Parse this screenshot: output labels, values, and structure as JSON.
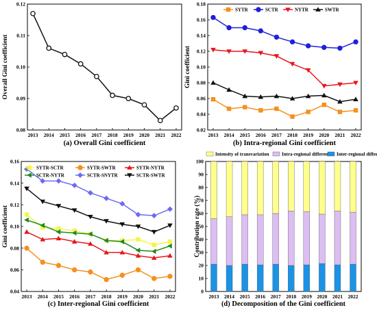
{
  "colors": {
    "axis": "#000000",
    "SYTR": "#f5901e",
    "SCTR": "#1f1fdc",
    "NYTR": "#e8161a",
    "SWTR": "#111111",
    "SYTR-SCTR": "#f5f54a",
    "SYTR-SWTR": "#f5901e",
    "SYTR-NYTR": "#e8161a",
    "SCTR-NYTR": "#1f8a1f",
    "SCTR-SNYTR": "#6b6bf0",
    "SCTR-SWTR": "#111111",
    "transvariation": "#ffff8c",
    "intra": "#dcbef2",
    "inter": "#1a93e6"
  },
  "chart_data": [
    {
      "id": "a",
      "type": "line",
      "caption": "(a) Overall Gini coefficient",
      "ylabel": "Overall Gini coefficient",
      "xlabel": "",
      "x": [
        "2013",
        "2014",
        "2015",
        "2016",
        "2017",
        "2018",
        "2019",
        "2020",
        "2021",
        "2022"
      ],
      "ylim": [
        0.08,
        0.12
      ],
      "yticks": [
        "0.08",
        "0.09",
        "0.10",
        "0.11",
        "0.12"
      ],
      "series": [
        {
          "values": [
            0.117,
            0.106,
            0.104,
            0.101,
            0.097,
            0.091,
            0.09,
            0.088,
            0.083,
            0.087
          ],
          "color": "#111111",
          "marker": "circle-open"
        }
      ]
    },
    {
      "id": "b",
      "type": "line",
      "caption": "(b) Intra-regional Gini coefficient",
      "ylabel": "Gini coefficient",
      "xlabel": "",
      "x": [
        "2013",
        "2014",
        "2015",
        "2016",
        "2017",
        "2018",
        "2019",
        "2020",
        "2021",
        "2022"
      ],
      "ylim": [
        0.02,
        0.18
      ],
      "yticks": [
        "0.02",
        "0.04",
        "0.06",
        "0.08",
        "0.10",
        "0.12",
        "0.14",
        "0.16",
        "0.18"
      ],
      "legend_position": "top",
      "series": [
        {
          "name": "SYTR",
          "values": [
            0.059,
            0.047,
            0.049,
            0.045,
            0.047,
            0.037,
            0.043,
            0.052,
            0.043,
            0.045
          ],
          "color": "#f5901e",
          "marker": "square"
        },
        {
          "name": "SCTR",
          "values": [
            0.163,
            0.15,
            0.15,
            0.146,
            0.138,
            0.132,
            0.127,
            0.125,
            0.124,
            0.132
          ],
          "color": "#1f1fdc",
          "marker": "circle"
        },
        {
          "name": "NYTR",
          "values": [
            0.122,
            0.12,
            0.12,
            0.118,
            0.114,
            0.104,
            0.096,
            0.076,
            0.078,
            0.08
          ],
          "color": "#e8161a",
          "marker": "triangle-down"
        },
        {
          "name": "SWTR",
          "values": [
            0.08,
            0.071,
            0.063,
            0.062,
            0.063,
            0.06,
            0.063,
            0.064,
            0.056,
            0.059
          ],
          "color": "#111111",
          "marker": "triangle-up"
        }
      ]
    },
    {
      "id": "c",
      "type": "line",
      "caption": "(c) Inter-regional Gini coefficient",
      "ylabel": "Gini coefficient",
      "xlabel": "",
      "x": [
        "2013",
        "2014",
        "2015",
        "2016",
        "2017",
        "2018",
        "2019",
        "2020",
        "2021",
        "2022"
      ],
      "ylim": [
        0.04,
        0.16
      ],
      "yticks": [
        "0.04",
        "0.06",
        "0.08",
        "0.10",
        "0.12",
        "0.14",
        "0.16"
      ],
      "legend_position": "top",
      "series": [
        {
          "name": "SYTR-SCTR",
          "values": [
            0.111,
            0.099,
            0.098,
            0.096,
            0.093,
            0.087,
            0.087,
            0.088,
            0.083,
            0.086
          ],
          "color": "#f5f54a",
          "marker": "square"
        },
        {
          "name": "SYTR-SWTR",
          "values": [
            0.08,
            0.067,
            0.064,
            0.06,
            0.058,
            0.051,
            0.055,
            0.06,
            0.052,
            0.054
          ],
          "color": "#f5901e",
          "marker": "circle"
        },
        {
          "name": "SYTR-NYTR",
          "values": [
            0.095,
            0.088,
            0.089,
            0.086,
            0.084,
            0.076,
            0.076,
            0.073,
            0.071,
            0.073
          ],
          "color": "#e8161a",
          "marker": "triangle-up"
        },
        {
          "name": "SCTR-NYTR",
          "values": [
            0.106,
            0.101,
            0.095,
            0.094,
            0.093,
            0.087,
            0.086,
            0.078,
            0.077,
            0.082
          ],
          "color": "#1f8a1f",
          "marker": "triangle-left"
        },
        {
          "name": "SCTR-SNYTR",
          "values": [
            0.153,
            0.142,
            0.142,
            0.138,
            0.131,
            0.126,
            0.121,
            0.111,
            0.11,
            0.116
          ],
          "color": "#6b6bf0",
          "marker": "diamond"
        },
        {
          "name": "SCTR-SWTR",
          "values": [
            0.135,
            0.123,
            0.119,
            0.115,
            0.109,
            0.105,
            0.102,
            0.1,
            0.095,
            0.101
          ],
          "color": "#111111",
          "marker": "triangle-down"
        }
      ]
    },
    {
      "id": "d",
      "type": "bar",
      "stacked": true,
      "caption": "(d) Decomposition of the Gini coefficient",
      "ylabel": "Contribution rate (%)",
      "xlabel": "",
      "categories": [
        "2013",
        "2014",
        "2015",
        "2016",
        "2017",
        "2018",
        "2019",
        "2020",
        "2021",
        "2022"
      ],
      "ylim": [
        0,
        100
      ],
      "yticks": [
        "0",
        "10",
        "20",
        "30",
        "40",
        "50",
        "60",
        "70",
        "80",
        "90",
        "100"
      ],
      "legend_position": "top",
      "series": [
        {
          "name": "Inter-regional difference",
          "values": [
            21,
            20,
            21,
            20.5,
            21,
            20,
            20.5,
            21.5,
            20.5,
            21
          ],
          "color": "#1a93e6"
        },
        {
          "name": "Intra-regional difference",
          "values": [
            35,
            37.5,
            38,
            38.5,
            39,
            42,
            41,
            38,
            41.5,
            40
          ],
          "color": "#dcbef2"
        },
        {
          "name": "Intensity of transvariation",
          "values": [
            44,
            42.5,
            41,
            41,
            40,
            38,
            38.5,
            40.5,
            38,
            39
          ],
          "color": "#ffff8c"
        }
      ]
    }
  ]
}
